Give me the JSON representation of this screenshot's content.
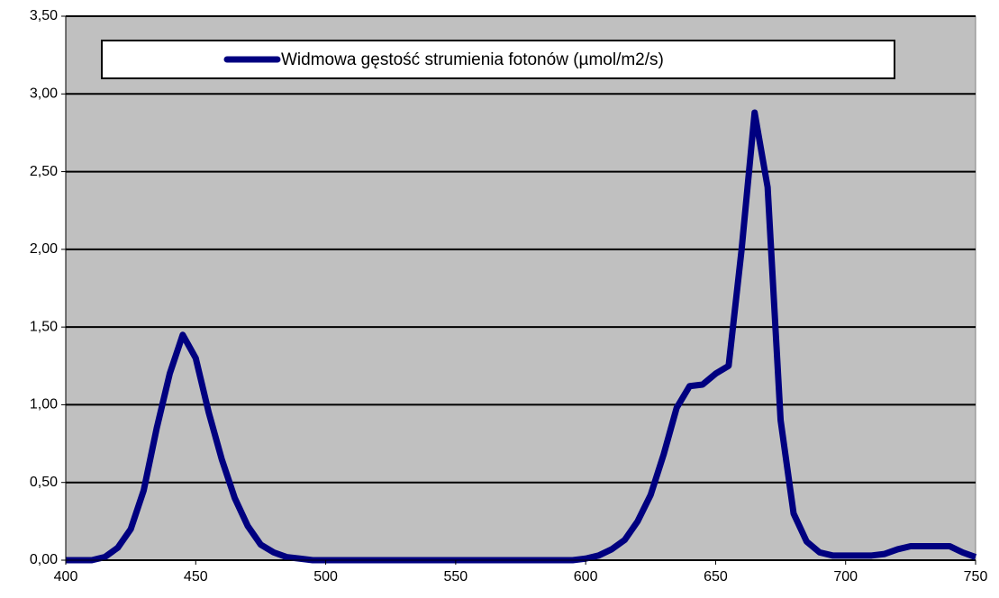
{
  "chart_data": {
    "type": "line",
    "legend": "Widmowa gęstość strumienia fotonów (µmol/m2/s)",
    "color": "#000080",
    "grid": true,
    "xlim": [
      400,
      750
    ],
    "ylim": [
      0,
      3.5
    ],
    "xticks": [
      400,
      450,
      500,
      550,
      600,
      650,
      700,
      750
    ],
    "yticks": [
      {
        "value": 0,
        "label": "0,00"
      },
      {
        "value": 0.5,
        "label": "0,50"
      },
      {
        "value": 1,
        "label": "1,00"
      },
      {
        "value": 1.5,
        "label": "1,50"
      },
      {
        "value": 2,
        "label": "2,00"
      },
      {
        "value": 2.5,
        "label": "2,50"
      },
      {
        "value": 3,
        "label": "3,00"
      },
      {
        "value": 3.5,
        "label": "3,50"
      }
    ],
    "x": [
      400,
      405,
      410,
      415,
      420,
      425,
      430,
      435,
      440,
      445,
      450,
      455,
      460,
      465,
      470,
      475,
      480,
      485,
      490,
      495,
      500,
      505,
      510,
      515,
      520,
      525,
      530,
      535,
      540,
      545,
      550,
      555,
      560,
      565,
      570,
      575,
      580,
      585,
      590,
      595,
      600,
      605,
      610,
      615,
      620,
      625,
      630,
      635,
      640,
      645,
      650,
      655,
      660,
      665,
      670,
      675,
      680,
      685,
      690,
      695,
      700,
      705,
      710,
      715,
      720,
      725,
      730,
      735,
      740,
      745,
      750
    ],
    "values": [
      0,
      0,
      0,
      0.02,
      0.08,
      0.2,
      0.45,
      0.85,
      1.2,
      1.45,
      1.3,
      0.95,
      0.65,
      0.4,
      0.22,
      0.1,
      0.05,
      0.02,
      0.01,
      0,
      0,
      0,
      0,
      0,
      0,
      0,
      0,
      0,
      0,
      0,
      0,
      0,
      0,
      0,
      0,
      0,
      0,
      0,
      0,
      0,
      0.01,
      0.03,
      0.07,
      0.13,
      0.25,
      0.42,
      0.68,
      0.98,
      1.12,
      1.13,
      1.2,
      1.25,
      2.0,
      2.88,
      2.4,
      0.9,
      0.3,
      0.12,
      0.05,
      0.03,
      0.03,
      0.03,
      0.03,
      0.04,
      0.07,
      0.09,
      0.09,
      0.09,
      0.09,
      0.05,
      0.02
    ]
  }
}
